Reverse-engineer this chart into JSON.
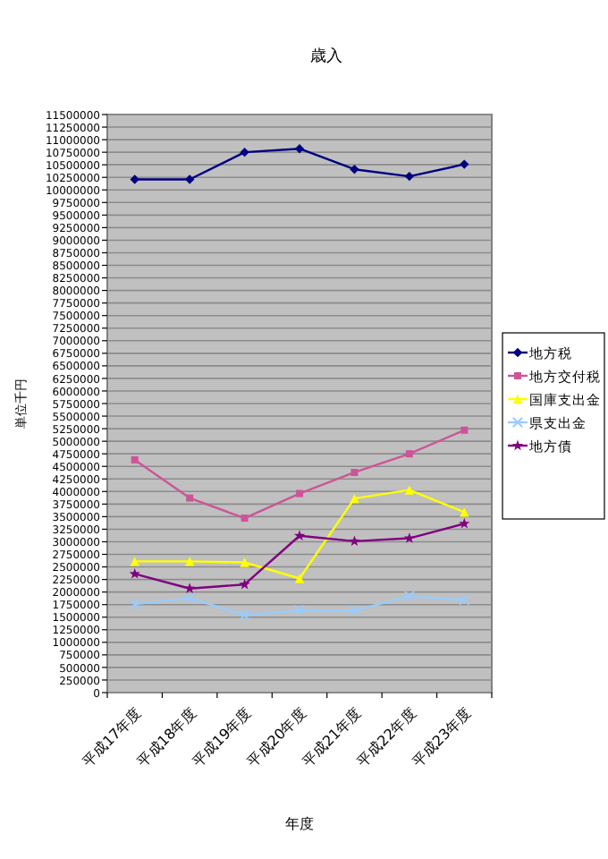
{
  "chart_data": {
    "type": "line",
    "title": "歳入",
    "xlabel": "年度",
    "ylabel": "単位千円",
    "categories": [
      "平成17年度",
      "平成18年度",
      "平成19年度",
      "平成20年度",
      "平成21年度",
      "平成22年度",
      "平成23年度"
    ],
    "series": [
      {
        "name": "地方税",
        "color": "#000080",
        "marker": "diamond",
        "values": [
          10210000,
          10210000,
          10750000,
          10820000,
          10410000,
          10270000,
          10510000
        ]
      },
      {
        "name": "地方交付税",
        "color": "#cc5599",
        "marker": "square",
        "values": [
          4630000,
          3870000,
          3470000,
          3960000,
          4380000,
          4750000,
          5220000
        ]
      },
      {
        "name": "国庫支出金",
        "color": "#ffff00",
        "marker": "triangle",
        "values": [
          2610000,
          2610000,
          2590000,
          2270000,
          3860000,
          4030000,
          3590000
        ]
      },
      {
        "name": "県支出金",
        "color": "#99ccff",
        "marker": "cross",
        "values": [
          1760000,
          1880000,
          1540000,
          1640000,
          1630000,
          1920000,
          1840000
        ]
      },
      {
        "name": "地方債",
        "color": "#800080",
        "marker": "star",
        "values": [
          2360000,
          2070000,
          2150000,
          3120000,
          3010000,
          3070000,
          3360000
        ]
      }
    ],
    "ylim": [
      0,
      11500000
    ],
    "yticks": [
      0,
      250000,
      500000,
      750000,
      1000000,
      1250000,
      1500000,
      1750000,
      2000000,
      2250000,
      2500000,
      2750000,
      3000000,
      3250000,
      3500000,
      3750000,
      4000000,
      4250000,
      4500000,
      4750000,
      5000000,
      5250000,
      5500000,
      5750000,
      6000000,
      6250000,
      6500000,
      6750000,
      7000000,
      7250000,
      7500000,
      7750000,
      8000000,
      8250000,
      8500000,
      8750000,
      9000000,
      9250000,
      9500000,
      9750000,
      10000000,
      10250000,
      10500000,
      10750000,
      11000000,
      11250000,
      11500000
    ],
    "grid": "y",
    "legend": "right",
    "line_style": "solid"
  }
}
